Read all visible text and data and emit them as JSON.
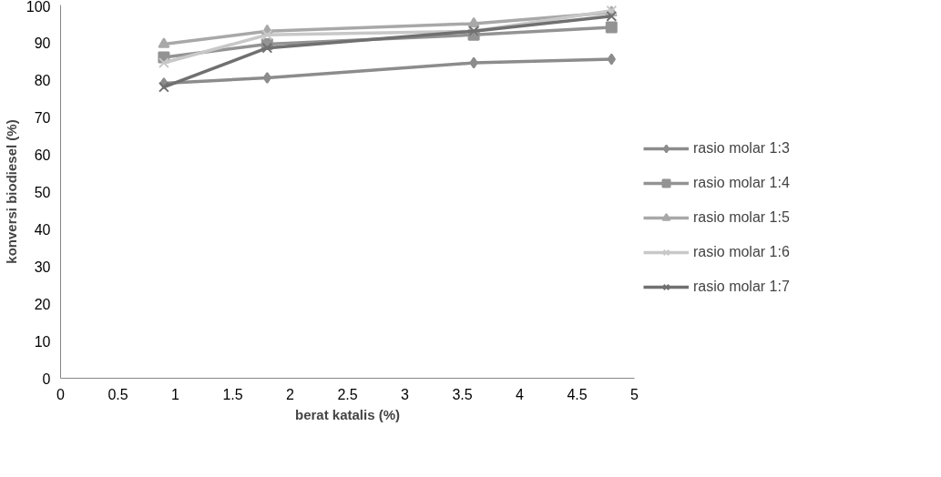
{
  "chart_data": {
    "type": "line",
    "xlabel": "berat katalis (%)",
    "ylabel": "konversi biodiesel (%)",
    "x": [
      0.9,
      1.8,
      3.6,
      4.8
    ],
    "series": [
      {
        "name": "rasio molar 1:3",
        "color": "#8c8c8c",
        "marker": "diamond",
        "values": [
          79,
          80.5,
          84.5,
          85.5
        ]
      },
      {
        "name": "rasio molar 1:4",
        "color": "#939393",
        "marker": "square",
        "values": [
          86,
          89.5,
          92,
          94
        ]
      },
      {
        "name": "rasio molar 1:5",
        "color": "#a8a8a8",
        "marker": "triangle",
        "values": [
          89.5,
          93,
          95,
          98
        ]
      },
      {
        "name": "rasio molar 1:6",
        "color": "#c8c8c8",
        "marker": "cross",
        "values": [
          84.5,
          92,
          93,
          98.5
        ]
      },
      {
        "name": "rasio molar 1:7",
        "color": "#707070",
        "marker": "cross",
        "values": [
          78,
          88.5,
          93,
          97
        ]
      }
    ],
    "xlim": [
      0,
      5
    ],
    "xticks": [
      0,
      0.5,
      1,
      1.5,
      2,
      2.5,
      3,
      3.5,
      4,
      4.5,
      5
    ],
    "ylim": [
      0,
      100
    ],
    "yticks": [
      0,
      10,
      20,
      30,
      40,
      50,
      60,
      70,
      80,
      90,
      100
    ],
    "grid": false,
    "legend": "right",
    "line_style": "solid"
  }
}
